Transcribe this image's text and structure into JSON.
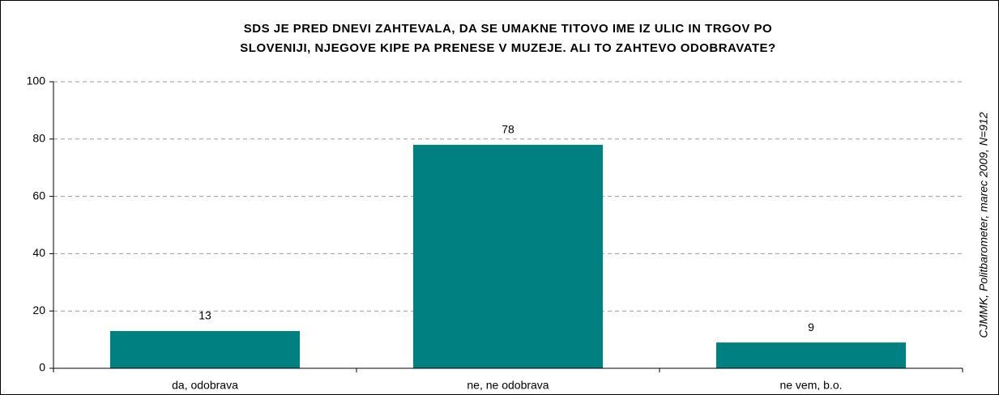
{
  "chart_data": {
    "type": "bar",
    "title": [
      "SDS JE PRED DNEVI ZAHTEVALA, DA SE UMAKNE TITOVO IME IZ ULIC IN TRGOV PO",
      "SLOVENIJI, NJEGOVE KIPE PA PRENESE V MUZEJE. ALI TO ZAHTEVO ODOBRAVATE?"
    ],
    "source": "CJMMK, Politbarometer, marec 2009, N=912",
    "categories": [
      "da, odobrava",
      "ne, ne odobrava",
      "ne vem, b.o."
    ],
    "values": [
      13,
      78,
      9
    ],
    "color": "#008080",
    "ylim": [
      0,
      100
    ],
    "yticks": [
      0,
      20,
      40,
      60,
      80,
      100
    ],
    "grid": true
  }
}
